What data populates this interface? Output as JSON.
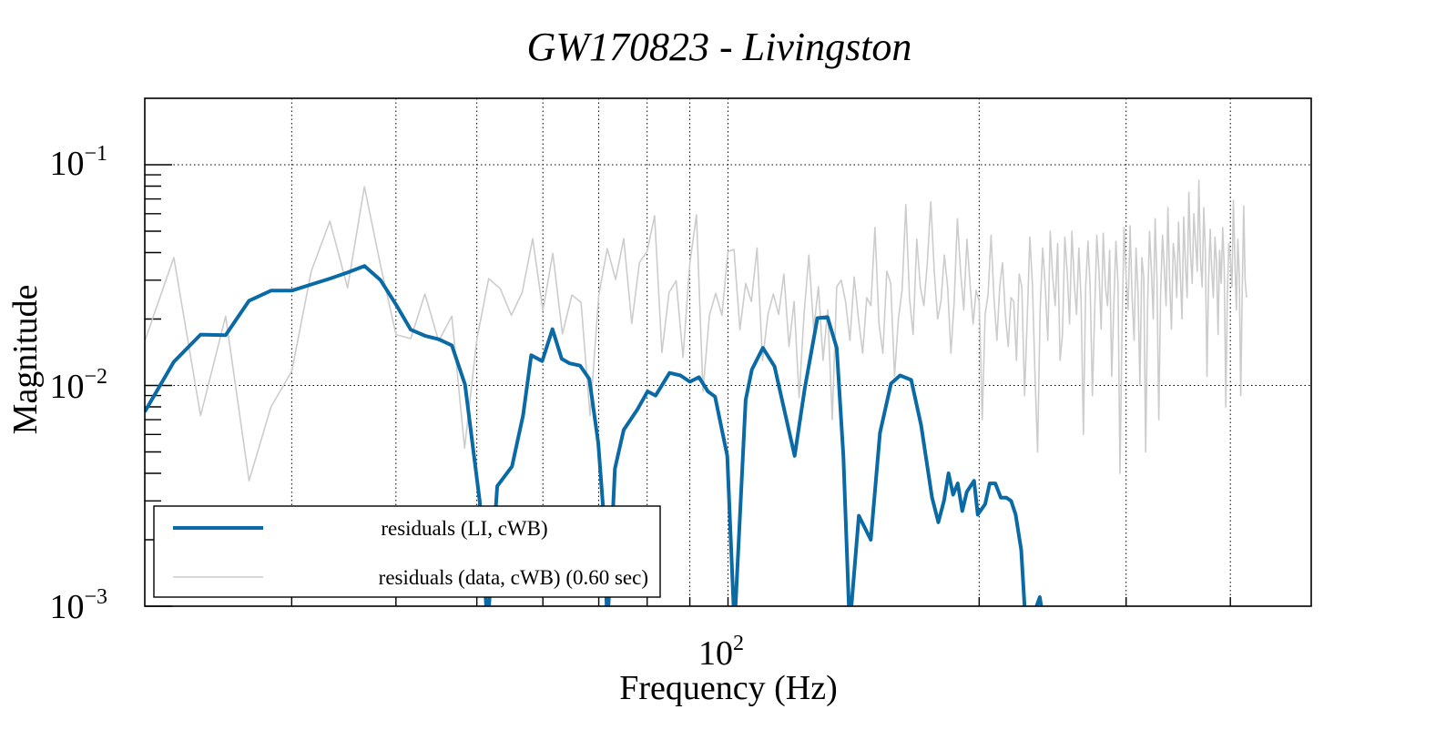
{
  "chart_data": {
    "type": "line",
    "title": "GW170823 - Livingston",
    "xlabel": "Frequency (Hz)",
    "ylabel": "Magnitude",
    "xscale": "log",
    "yscale": "log",
    "xlim": [
      20,
      500
    ],
    "ylim": [
      0.001,
      0.2
    ],
    "grid": true,
    "legend_position": "bottom-left",
    "x_major_ticks": [
      {
        "value": 100,
        "base": "10",
        "exp": "2"
      }
    ],
    "x_minor_ticks": [
      30,
      40,
      50,
      60,
      70,
      80,
      90,
      200,
      300,
      400
    ],
    "y_major_ticks": [
      {
        "value": 0.1,
        "base": "10",
        "exp": "−1"
      },
      {
        "value": 0.01,
        "base": "10",
        "exp": "−2"
      },
      {
        "value": 0.001,
        "base": "10",
        "exp": "−3"
      }
    ],
    "series": [
      {
        "name": "residuals (LI, cWB)",
        "color": "#0a6aa6",
        "x": [
          20,
          21.67,
          23.33,
          25,
          26.67,
          28.33,
          30,
          31.67,
          33.33,
          35,
          36.67,
          38.33,
          40,
          41.67,
          43.33,
          45,
          46.67,
          48.4,
          50.4,
          51.5,
          52.9,
          55.1,
          56.8,
          58.1,
          59.9,
          61.6,
          63.2,
          64.6,
          66.5,
          68.2,
          69.9,
          70.9,
          71.7,
          73.2,
          75.0,
          77.9,
          80.1,
          81.9,
          85.1,
          87.7,
          90,
          92.3,
          94.6,
          96.5,
          99.8,
          101.8,
          105,
          106.8,
          110.1,
          113.7,
          117.2,
          120.2,
          123.6,
          128,
          131.6,
          135,
          137.5,
          139.9,
          143.5,
          148.3,
          152.1,
          156.8,
          160.8,
          165.8,
          170.4,
          175.6,
          178.7,
          181.5,
          183.8,
          186.1,
          188.5,
          190.9,
          193.3,
          197.2,
          199.2,
          203.3,
          205.9,
          209.1,
          212.3,
          215.6,
          218.4,
          221.2,
          224.6,
          227.5,
          232,
          236.4,
          239.5
        ],
        "y": [
          0.0076,
          0.0128,
          0.017,
          0.0169,
          0.0242,
          0.0269,
          0.0269,
          0.0287,
          0.0305,
          0.0325,
          0.0348,
          0.03,
          0.0233,
          0.0179,
          0.0168,
          0.0162,
          0.0152,
          0.0101,
          0.003,
          0.0008,
          0.0035,
          0.0043,
          0.0073,
          0.0137,
          0.0129,
          0.018,
          0.0132,
          0.0126,
          0.0123,
          0.0107,
          0.0055,
          0.0027,
          0.0008,
          0.0042,
          0.0063,
          0.0078,
          0.0094,
          0.009,
          0.0114,
          0.0111,
          0.0104,
          0.0109,
          0.0094,
          0.0089,
          0.0048,
          0.0008,
          0.0086,
          0.0118,
          0.0148,
          0.0122,
          0.0073,
          0.0048,
          0.0097,
          0.0202,
          0.0204,
          0.0148,
          0.0048,
          0.0008,
          0.00257,
          0.002,
          0.0061,
          0.0102,
          0.0111,
          0.0106,
          0.0066,
          0.0031,
          0.0024,
          0.003,
          0.004,
          0.0032,
          0.0036,
          0.0027,
          0.0033,
          0.0037,
          0.0026,
          0.0029,
          0.0036,
          0.0036,
          0.0031,
          0.0031,
          0.003,
          0.0026,
          0.0018,
          0.0008,
          0.0009,
          0.0011,
          0.0008
        ]
      },
      {
        "name": "residuals (data, cWB) (0.60 sec)",
        "color": "#cccccc",
        "x_start": 20,
        "x_step": 1.6667,
        "y": [
          0.0159,
          0.038,
          0.0073,
          0.0206,
          0.0037,
          0.008,
          0.0116,
          0.033,
          0.0555,
          0.0277,
          0.0796,
          0.035,
          0.017,
          0.0163,
          0.026,
          0.0159,
          0.0206,
          0.0052,
          0.0162,
          0.0305,
          0.0275,
          0.0208,
          0.0264,
          0.0463,
          0.0218,
          0.0397,
          0.0171,
          0.0257,
          0.0238,
          0.0073,
          0.0257,
          0.0417,
          0.0302,
          0.0463,
          0.0191,
          0.0361,
          0.0405,
          0.0587,
          0.0141,
          0.0264,
          0.0298,
          0.0134,
          0.0358,
          0.0593,
          0.0094,
          0.0208,
          0.0262,
          0.0208,
          0.0405,
          0.0413,
          0.0179,
          0.029,
          0.024,
          0.042,
          0.013,
          0.021,
          0.026,
          0.021,
          0.032,
          0.015,
          0.024,
          0.0088,
          0.021,
          0.039,
          0.018,
          0.028,
          0.013,
          0.022,
          0.007,
          0.028,
          0.03,
          0.024,
          0.016,
          0.031,
          0.02,
          0.014,
          0.025,
          0.023,
          0.052,
          0.019,
          0.014,
          0.033,
          0.029,
          0.011,
          0.02,
          0.027,
          0.066,
          0.025,
          0.017,
          0.046,
          0.028,
          0.023,
          0.036,
          0.068,
          0.033,
          0.02,
          0.024,
          0.039,
          0.028,
          0.014,
          0.024,
          0.057,
          0.033,
          0.022,
          0.046,
          0.029,
          0.019,
          0.027,
          0.024,
          0.007,
          0.021,
          0.026,
          0.048,
          0.025,
          0.016,
          0.028,
          0.036,
          0.021,
          0.015,
          0.025,
          0.024,
          0.013,
          0.032,
          0.028,
          0.009,
          0.02,
          0.047,
          0.029,
          0.011,
          0.005,
          0.022,
          0.042,
          0.028,
          0.016,
          0.05,
          0.031,
          0.023,
          0.044,
          0.013,
          0.017,
          0.047,
          0.033,
          0.019,
          0.05,
          0.029,
          0.021,
          0.042,
          0.024,
          0.006,
          0.028,
          0.045,
          0.028,
          0.009,
          0.021,
          0.048,
          0.033,
          0.018,
          0.049,
          0.028,
          0.023,
          0.041,
          0.011,
          0.023,
          0.045,
          0.029,
          0.004,
          0.019,
          0.052,
          0.031,
          0.022,
          0.053,
          0.025,
          0.016,
          0.042,
          0.026,
          0.01,
          0.038,
          0.031,
          0.005,
          0.023,
          0.05,
          0.033,
          0.02,
          0.057,
          0.03,
          0.007,
          0.026,
          0.048,
          0.034,
          0.023,
          0.064,
          0.029,
          0.018,
          0.044,
          0.037,
          0.025,
          0.055,
          0.032,
          0.02,
          0.058,
          0.036,
          0.025,
          0.075,
          0.04,
          0.029,
          0.06,
          0.045,
          0.033,
          0.085,
          0.037,
          0.028,
          0.064,
          0.041,
          0.011,
          0.03,
          0.051,
          0.033,
          0.025,
          0.047,
          0.036,
          0.017,
          0.041,
          0.029,
          0.052,
          0.034,
          0.008,
          0.026,
          0.044,
          0.037,
          0.028,
          0.069,
          0.038,
          0.022,
          0.046,
          0.032,
          0.009,
          0.028,
          0.065,
          0.03,
          0.025
        ]
      }
    ]
  }
}
